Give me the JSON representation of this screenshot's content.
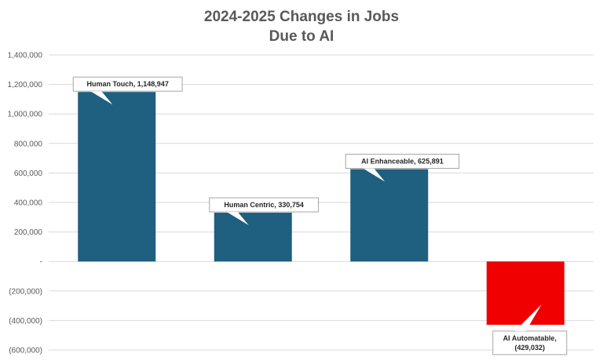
{
  "chart_data": {
    "type": "bar",
    "title": "2024-2025 Changes in Jobs",
    "subtitle": "Due to AI",
    "categories": [
      "Human Touch",
      "Human Centric",
      "AI Enhanceable",
      "AI Automatable"
    ],
    "values": [
      1148947,
      330754,
      625891,
      -429032
    ],
    "data_labels": [
      [
        "Human Touch,  1,148,947"
      ],
      [
        "Human Centric,  330,754"
      ],
      [
        "AI Enhanceable,  625,891"
      ],
      [
        "AI Automatable,",
        "(429,032)"
      ]
    ],
    "y_ticks": [
      1400000,
      1200000,
      1000000,
      800000,
      600000,
      400000,
      200000,
      0,
      -200000,
      -400000,
      -600000
    ],
    "y_tick_labels": [
      "1,400,000",
      "1,200,000",
      "1,000,000",
      "800,000",
      "600,000",
      "400,000",
      "200,000",
      "-",
      "(200,000)",
      "(400,000)",
      "(600,000)"
    ],
    "ylim": [
      -600000,
      1400000
    ],
    "grid": true,
    "legend": false,
    "colors": {
      "positive": "#1f5f7f",
      "negative": "#f00000",
      "grid": "#d9d9d9",
      "text": "#595959"
    }
  }
}
